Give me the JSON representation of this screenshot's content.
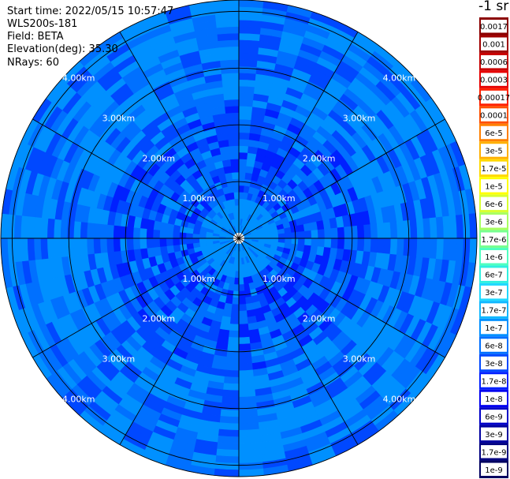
{
  "info": {
    "start_time": "Start time: 2022/05/15 10:57:47",
    "instrument": "WLS200s-181",
    "field": "Field: BETA",
    "elevation": "Elevation(deg): 35.30",
    "nrays": "NRays: 60"
  },
  "legend": {
    "title": "-1 sr",
    "labels": [
      "0.0017",
      "0.001",
      "0.0006",
      "0.0003",
      "0.00017",
      "0.0001",
      "6e-5",
      "3e-5",
      "1.7e-5",
      "1e-5",
      "6e-6",
      "3e-6",
      "1.7e-6",
      "1e-6",
      "6e-7",
      "3e-7",
      "1.7e-7",
      "1e-7",
      "6e-8",
      "3e-8",
      "1.7e-8",
      "1e-8",
      "6e-9",
      "3e-9",
      "1.7e-9",
      "1e-9"
    ],
    "colors": [
      "#8b0000",
      "#a00000",
      "#c80000",
      "#e60000",
      "#ff2000",
      "#ff5000",
      "#ff8000",
      "#ffb000",
      "#ffd800",
      "#ffff00",
      "#d8ff30",
      "#a8ff60",
      "#78ff90",
      "#50ffc0",
      "#30f0e0",
      "#20d8ff",
      "#10b8ff",
      "#0090ff",
      "#0070ff",
      "#0048ff",
      "#0020ff",
      "#0000f0",
      "#0000c8",
      "#0000a0",
      "#000080",
      "#000060"
    ]
  },
  "chart_data": {
    "type": "heatmap",
    "projection": "polar (PPI scan)",
    "nrays": 60,
    "range_rings_km": [
      1.0,
      2.0,
      3.0,
      4.0
    ],
    "range_ring_labels": [
      "1.00km",
      "2.00km",
      "3.00km",
      "4.00km"
    ],
    "max_range_km": 4.2,
    "spokes_deg": [
      0,
      30,
      60,
      90,
      120,
      150,
      180,
      210,
      240,
      270,
      300,
      330
    ],
    "range_gates": 36,
    "palette_index_range": [
      17,
      22
    ],
    "dominant_value": "1e-7",
    "notes_zones": [
      {
        "range_km": [
          0.0,
          0.6
        ],
        "typical_value": "1.7e-7"
      },
      {
        "range_km": [
          0.6,
          2.3
        ],
        "typical_value": "6e-8 to 1e-8"
      },
      {
        "range_km": [
          2.3,
          4.2
        ],
        "typical_value": "1e-7 to 3e-8"
      }
    ]
  },
  "colors": {
    "background": "#ffffff",
    "grid": "#000000",
    "ring_label": "#ffffff"
  }
}
